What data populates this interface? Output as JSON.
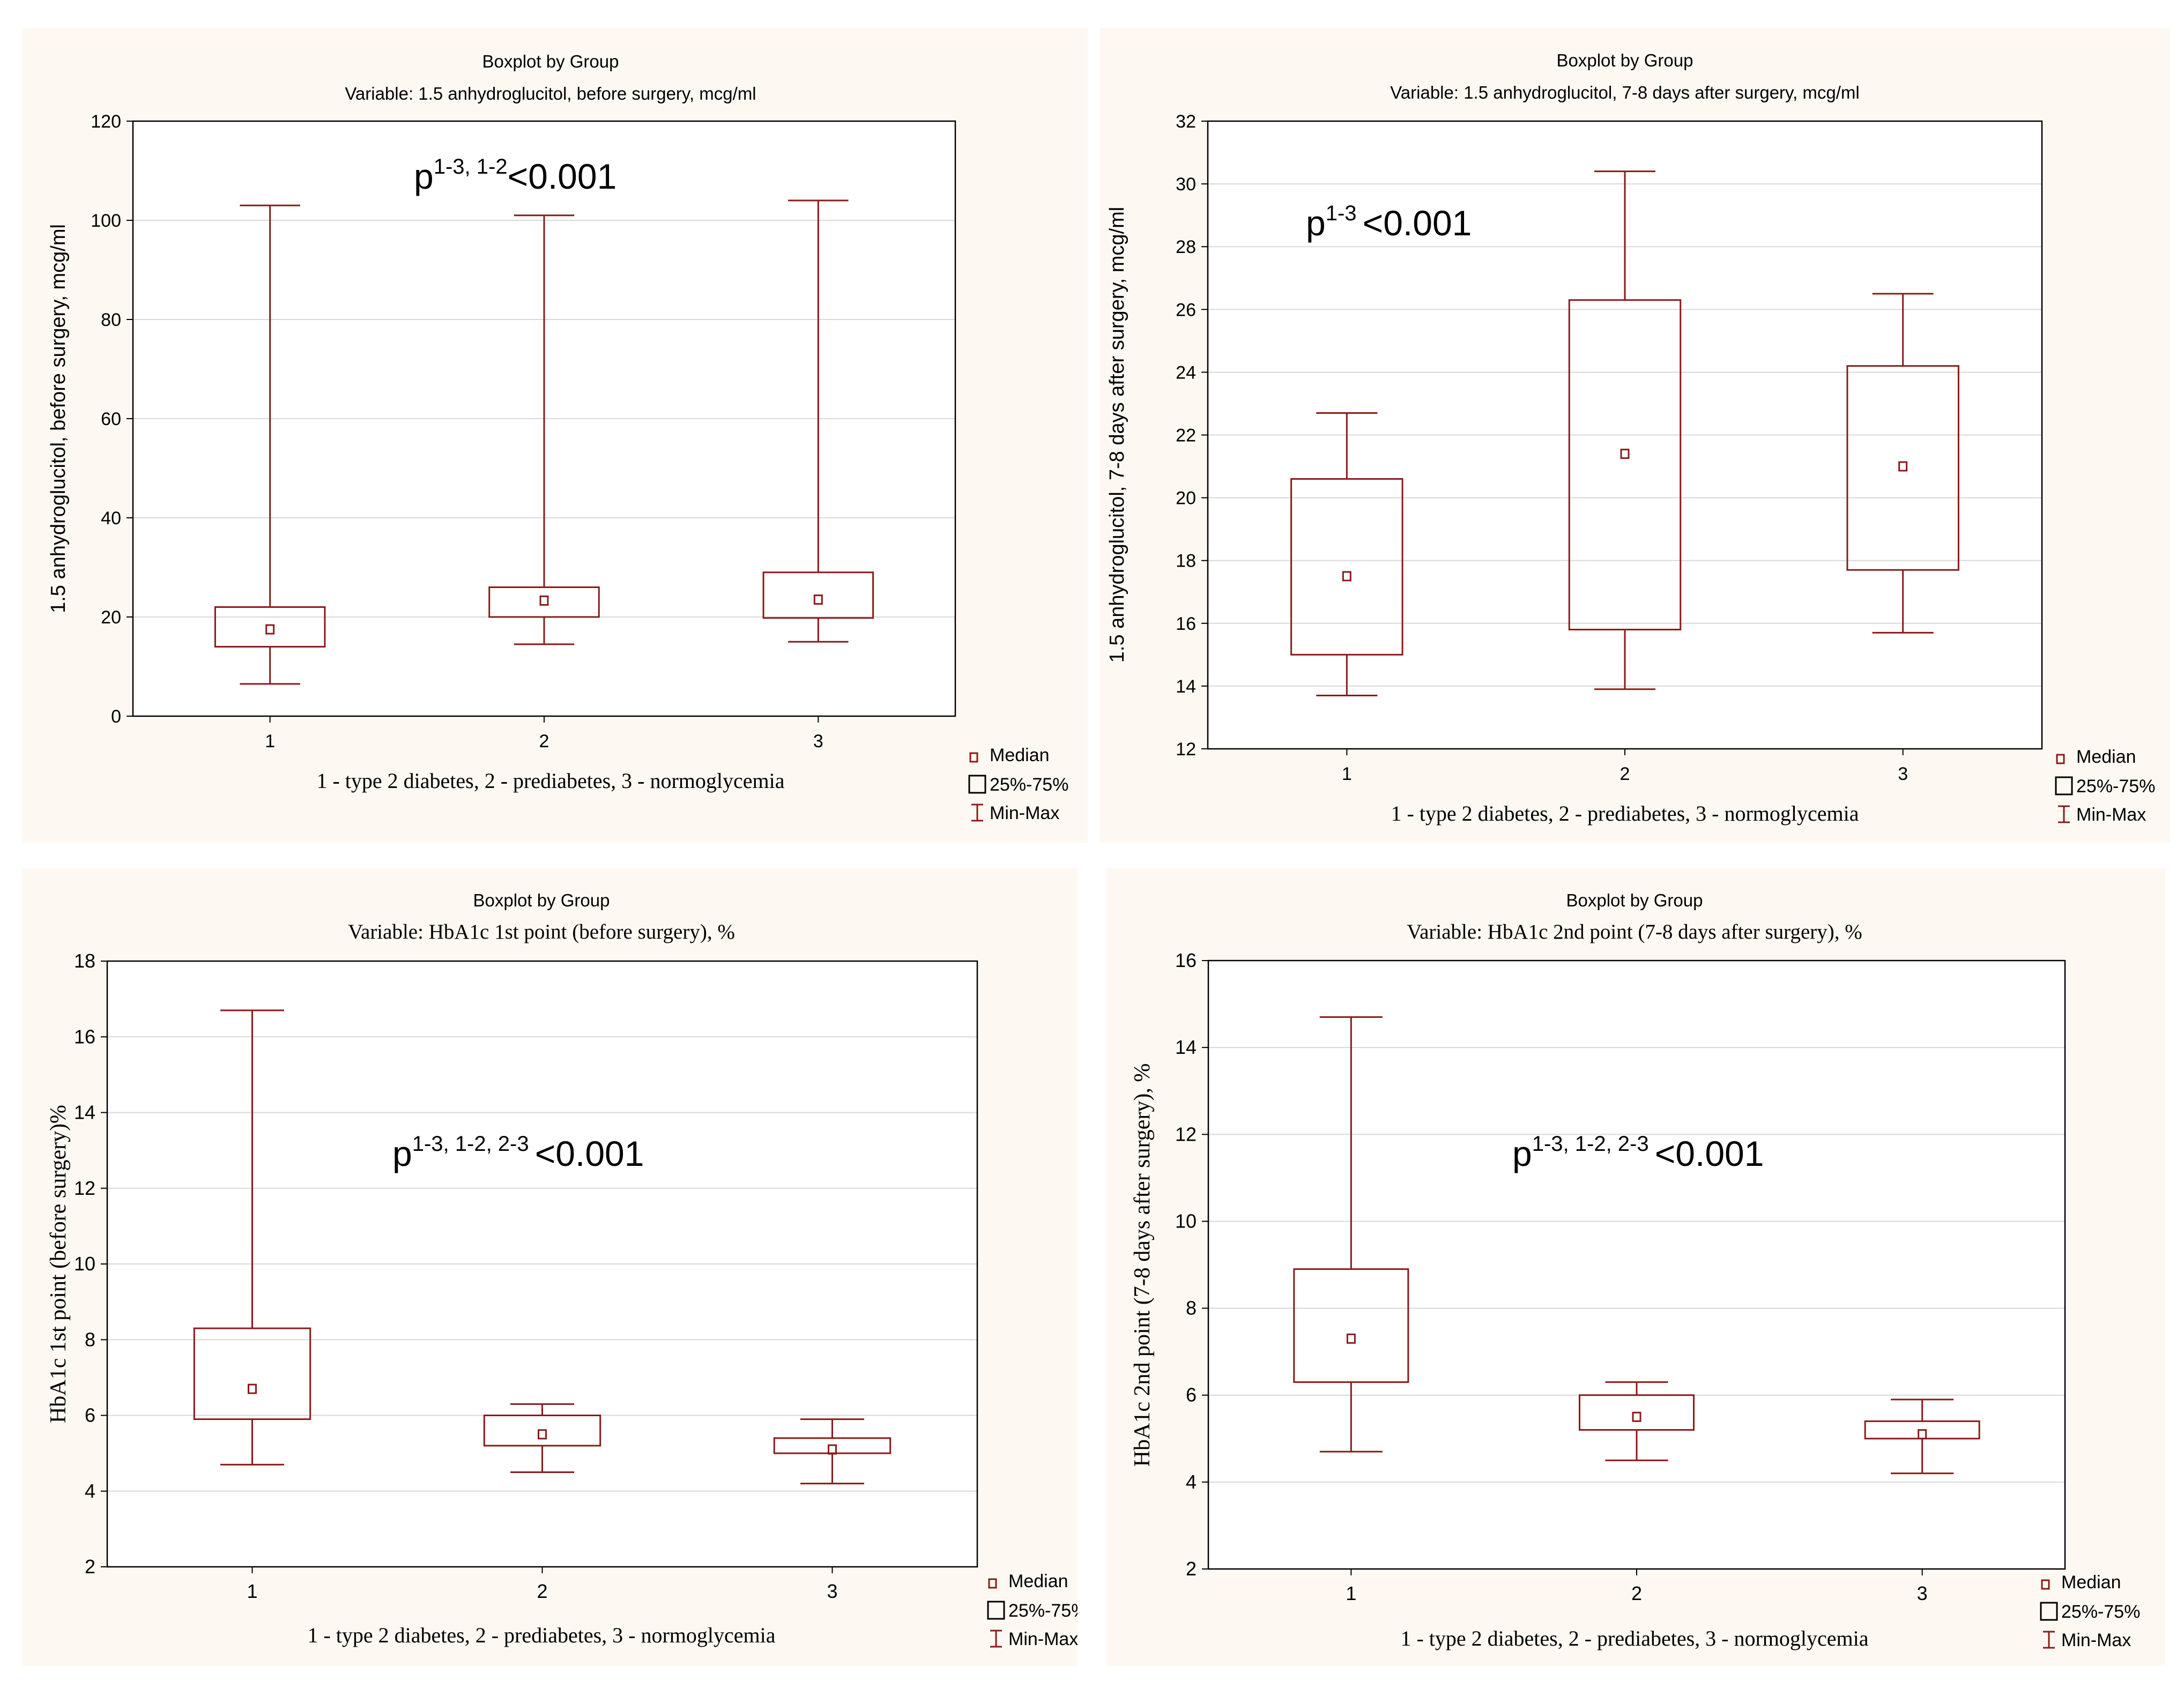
{
  "colors": {
    "box": "#8b1a1a",
    "axis": "#000000",
    "grid": "#d8d8d8",
    "panel_bg": "#fdf9f2",
    "plot_bg": "#ffffff"
  },
  "legend": {
    "median": "Median",
    "box": "25%-75%",
    "whisker": "Min-Max"
  },
  "chart_data": [
    {
      "type": "boxplot",
      "title": "Boxplot by Group",
      "subtitle": "Variable: 1.5 anhydroglucitol, before surgery, mcg/ml",
      "xlabel": "1 - type 2 diabetes, 2 - prediabetes, 3 - normoglycemia",
      "ylabel": "1.5 anhydroglucitol, before surgery, mcg/ml",
      "ylim": [
        0,
        120
      ],
      "yticks": [
        0,
        20,
        40,
        60,
        80,
        100,
        120
      ],
      "categories": [
        "1",
        "2",
        "3"
      ],
      "groups": [
        {
          "min": 6.5,
          "q1": 14,
          "median": 17.5,
          "q3": 22,
          "max": 103
        },
        {
          "min": 14.5,
          "q1": 20,
          "median": 23.3,
          "q3": 26,
          "max": 101
        },
        {
          "min": 15,
          "q1": 19.8,
          "median": 23.5,
          "q3": 29,
          "max": 104
        }
      ],
      "annotation": {
        "p": "p",
        "sup": "1-3, 1-2",
        "rest": "<0.001"
      }
    },
    {
      "type": "boxplot",
      "title": "Boxplot by Group",
      "subtitle": "Variable: 1.5 anhydroglucitol, 7-8 days after surgery, mcg/ml",
      "xlabel": "1 - type 2 diabetes, 2 - prediabetes, 3 - normoglycemia",
      "ylabel": "1.5 anhydroglucitol, 7-8 days after surgery, mcg/ml",
      "ylim": [
        12,
        32
      ],
      "yticks": [
        12,
        14,
        16,
        18,
        20,
        22,
        24,
        26,
        28,
        30,
        32
      ],
      "categories": [
        "1",
        "2",
        "3"
      ],
      "groups": [
        {
          "min": 13.7,
          "q1": 15,
          "median": 17.5,
          "q3": 20.6,
          "max": 22.7
        },
        {
          "min": 13.9,
          "q1": 15.8,
          "median": 21.4,
          "q3": 26.3,
          "max": 30.4
        },
        {
          "min": 15.7,
          "q1": 17.7,
          "median": 21,
          "q3": 24.2,
          "max": 26.5
        }
      ],
      "annotation": {
        "p": "p",
        "sup": "1-3 ",
        "rest": "<0.001"
      }
    },
    {
      "type": "boxplot",
      "title": "Boxplot by Group",
      "subtitle": "Variable: HbA1c 1st point (before surgery), %",
      "xlabel": "1 - type 2 diabetes, 2 - prediabetes, 3 - normoglycemia",
      "ylabel": "HbA1c 1st point (before surgery)%",
      "ylim": [
        2,
        18
      ],
      "yticks": [
        2,
        4,
        6,
        8,
        10,
        12,
        14,
        16,
        18
      ],
      "categories": [
        "1",
        "2",
        "3"
      ],
      "groups": [
        {
          "min": 4.7,
          "q1": 5.9,
          "median": 6.7,
          "q3": 8.3,
          "max": 16.7
        },
        {
          "min": 4.5,
          "q1": 5.2,
          "median": 5.5,
          "q3": 6,
          "max": 6.3
        },
        {
          "min": 4.2,
          "q1": 5,
          "median": 5.1,
          "q3": 5.4,
          "max": 5.9
        }
      ],
      "annotation": {
        "p": "p",
        "sup": "1-3, 1-2, 2-3 ",
        "rest": "<0.001"
      }
    },
    {
      "type": "boxplot",
      "title": "Boxplot by Group",
      "subtitle": "Variable: HbA1c 2nd point (7-8 days after surgery), %",
      "xlabel": "1 - type 2 diabetes, 2 - prediabetes, 3 - normoglycemia",
      "ylabel": "HbA1c 2nd point (7-8 days after surgery), %",
      "ylim": [
        2,
        16
      ],
      "yticks": [
        2,
        4,
        6,
        8,
        10,
        12,
        14,
        16
      ],
      "categories": [
        "1",
        "2",
        "3"
      ],
      "groups": [
        {
          "min": 4.7,
          "q1": 6.3,
          "median": 7.3,
          "q3": 8.9,
          "max": 14.7
        },
        {
          "min": 4.5,
          "q1": 5.2,
          "median": 5.5,
          "q3": 6,
          "max": 6.3
        },
        {
          "min": 4.2,
          "q1": 5,
          "median": 5.1,
          "q3": 5.4,
          "max": 5.9
        }
      ],
      "annotation": {
        "p": "p",
        "sup": "1-3, 1-2, 2-3 ",
        "rest": "<0.001"
      }
    }
  ]
}
